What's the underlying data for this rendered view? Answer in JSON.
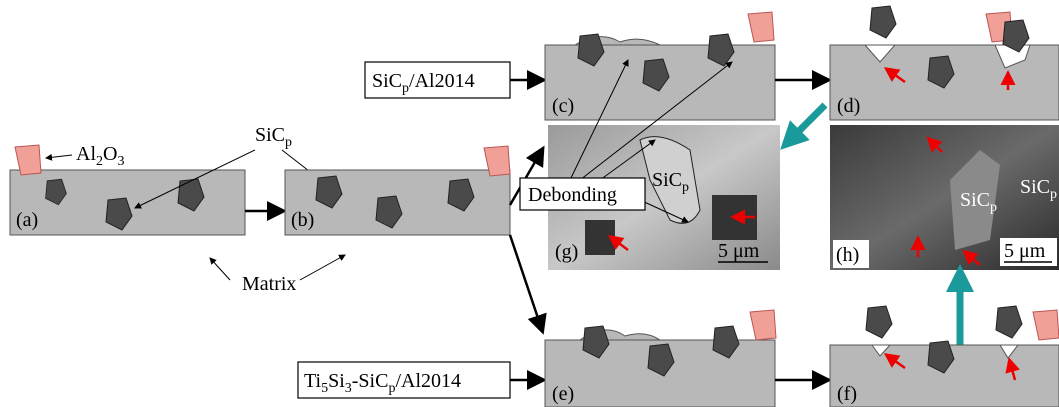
{
  "al2o3": [
    "Al",
    "2",
    "O",
    "3"
  ],
  "sicp_label": [
    "SiC",
    "p"
  ],
  "matrix": "Matrix",
  "composite_1": [
    "SiC",
    "p",
    "/Al2014"
  ],
  "composite_2": [
    "Ti",
    "5",
    "Si",
    "3",
    "-SiC",
    "p",
    "/Al2014"
  ],
  "debonding": "Debonding",
  "panel_labels": [
    "(a)",
    "(b)",
    "(c)",
    "(d)",
    "(e)",
    "(f)",
    "(g)",
    "(h)"
  ],
  "micrograph_g": {
    "sicp": [
      "SiC",
      "p"
    ],
    "scale": "5 μm"
  },
  "micrograph_h": {
    "sicp_1": [
      "SiC",
      "p"
    ],
    "sicp_2": [
      "SiC",
      "p"
    ],
    "scale": "5 μm"
  }
}
